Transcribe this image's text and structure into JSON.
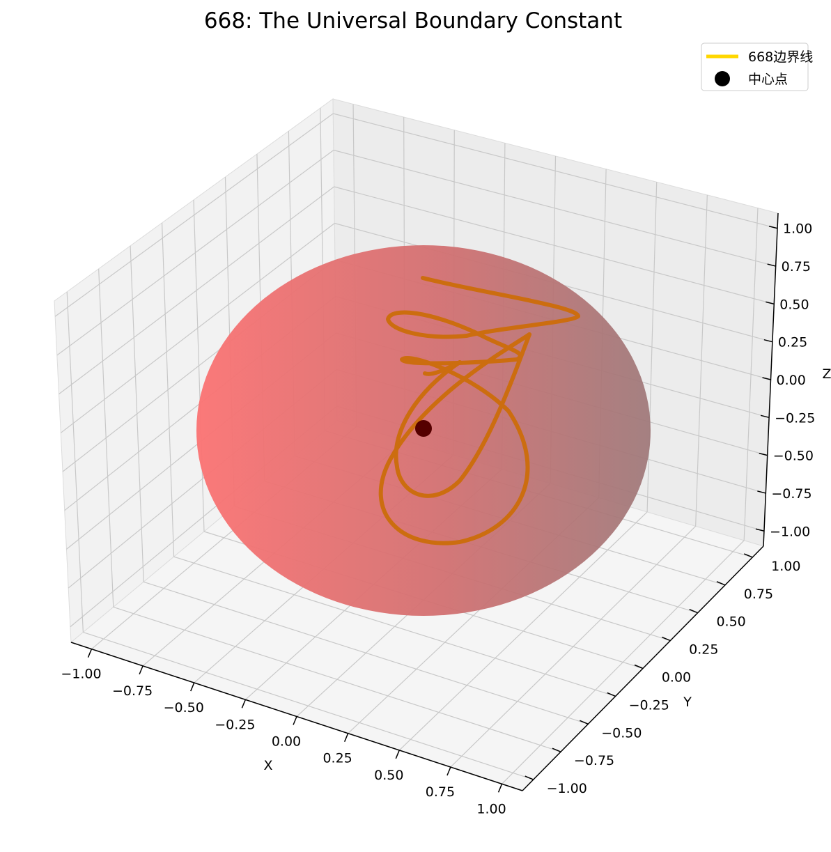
{
  "chart_data": {
    "type": "line3d",
    "title": "668: The Universal Boundary Constant",
    "xlabel": "X",
    "ylabel": "Y",
    "zlabel": "Z",
    "xlim": [
      -1.1,
      1.1
    ],
    "ylim": [
      -1.1,
      1.1
    ],
    "zlim": [
      -1.1,
      1.1
    ],
    "xticks": [
      "−1.00",
      "−0.75",
      "−0.50",
      "−0.25",
      "0.00",
      "0.25",
      "0.50",
      "0.75",
      "1.00"
    ],
    "yticks": [
      "−1.00",
      "−0.75",
      "−0.50",
      "−0.25",
      "0.00",
      "0.25",
      "0.50",
      "0.75",
      "1.00"
    ],
    "zticks": [
      "−1.00",
      "−0.75",
      "−0.50",
      "−0.25",
      "0.00",
      "0.25",
      "0.50",
      "0.75",
      "1.00"
    ],
    "grid": true,
    "legend_position": "top-right",
    "surface": {
      "shape": "sphere",
      "radius": 1.0,
      "color": "#ff6f6f"
    },
    "series": [
      {
        "name": "668边界线",
        "type": "line",
        "color": "#cc6d0f",
        "legend_color": "#ffd700"
      },
      {
        "name": "中心点",
        "type": "point",
        "color": "#550000",
        "legend_color": "#000000",
        "x": 0,
        "y": 0,
        "z": 0
      }
    ]
  }
}
